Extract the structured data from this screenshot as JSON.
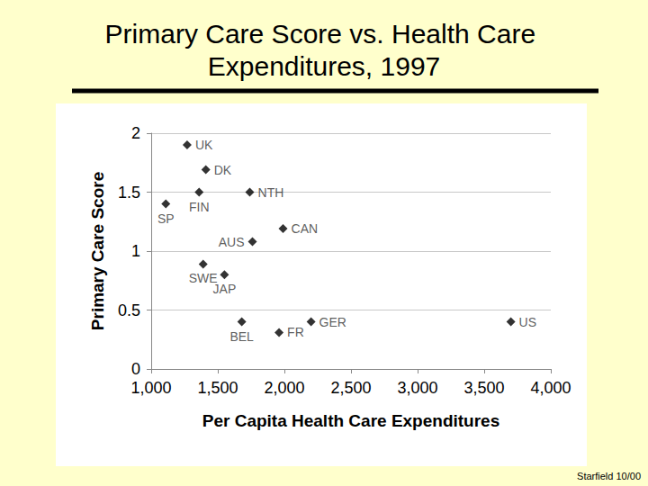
{
  "chart_data": {
    "type": "scatter",
    "title": "Primary Care Score vs. Health Care Expenditures, 1997",
    "x_label": "Per Capita Health Care Expenditures",
    "y_label": "Primary Care Score",
    "labels": [
      "UK",
      "DK",
      "FIN",
      "NTH",
      "SP",
      "CAN",
      "AUS",
      "SWE",
      "JAP",
      "BEL",
      "FR",
      "GER",
      "US"
    ],
    "x": [
      1270,
      1410,
      1360,
      1740,
      1110,
      1990,
      1760,
      1390,
      1550,
      1680,
      1960,
      2200,
      3700
    ],
    "values": [
      1.9,
      1.69,
      1.5,
      1.5,
      1.4,
      1.19,
      1.08,
      0.89,
      0.8,
      0.4,
      0.31,
      0.4,
      0.4
    ],
    "color": "#000000",
    "marker": "diamond",
    "xlim": [
      1000,
      4000
    ],
    "xticks": [
      1000,
      1500,
      2000,
      2500,
      3000,
      3500,
      4000
    ],
    "ylim": [
      0,
      2
    ],
    "yticks": [
      0,
      0.5,
      1,
      1.5,
      2
    ],
    "grid": true,
    "annotations": [
      "Starfield 10/00"
    ]
  }
}
